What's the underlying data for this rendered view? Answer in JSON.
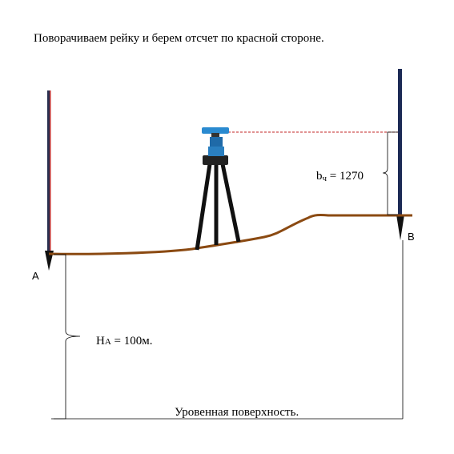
{
  "header": {
    "title": "Поворачиваем рейку и берем отсчет по красной стороне."
  },
  "points": {
    "a": "A",
    "b": "B"
  },
  "reading": {
    "main": "b",
    "sub": "ч",
    "rest": " = 1270"
  },
  "height": {
    "main": "H",
    "sub": "A",
    "rest": " = 100м."
  },
  "surface": "Уровенная поверхность."
}
